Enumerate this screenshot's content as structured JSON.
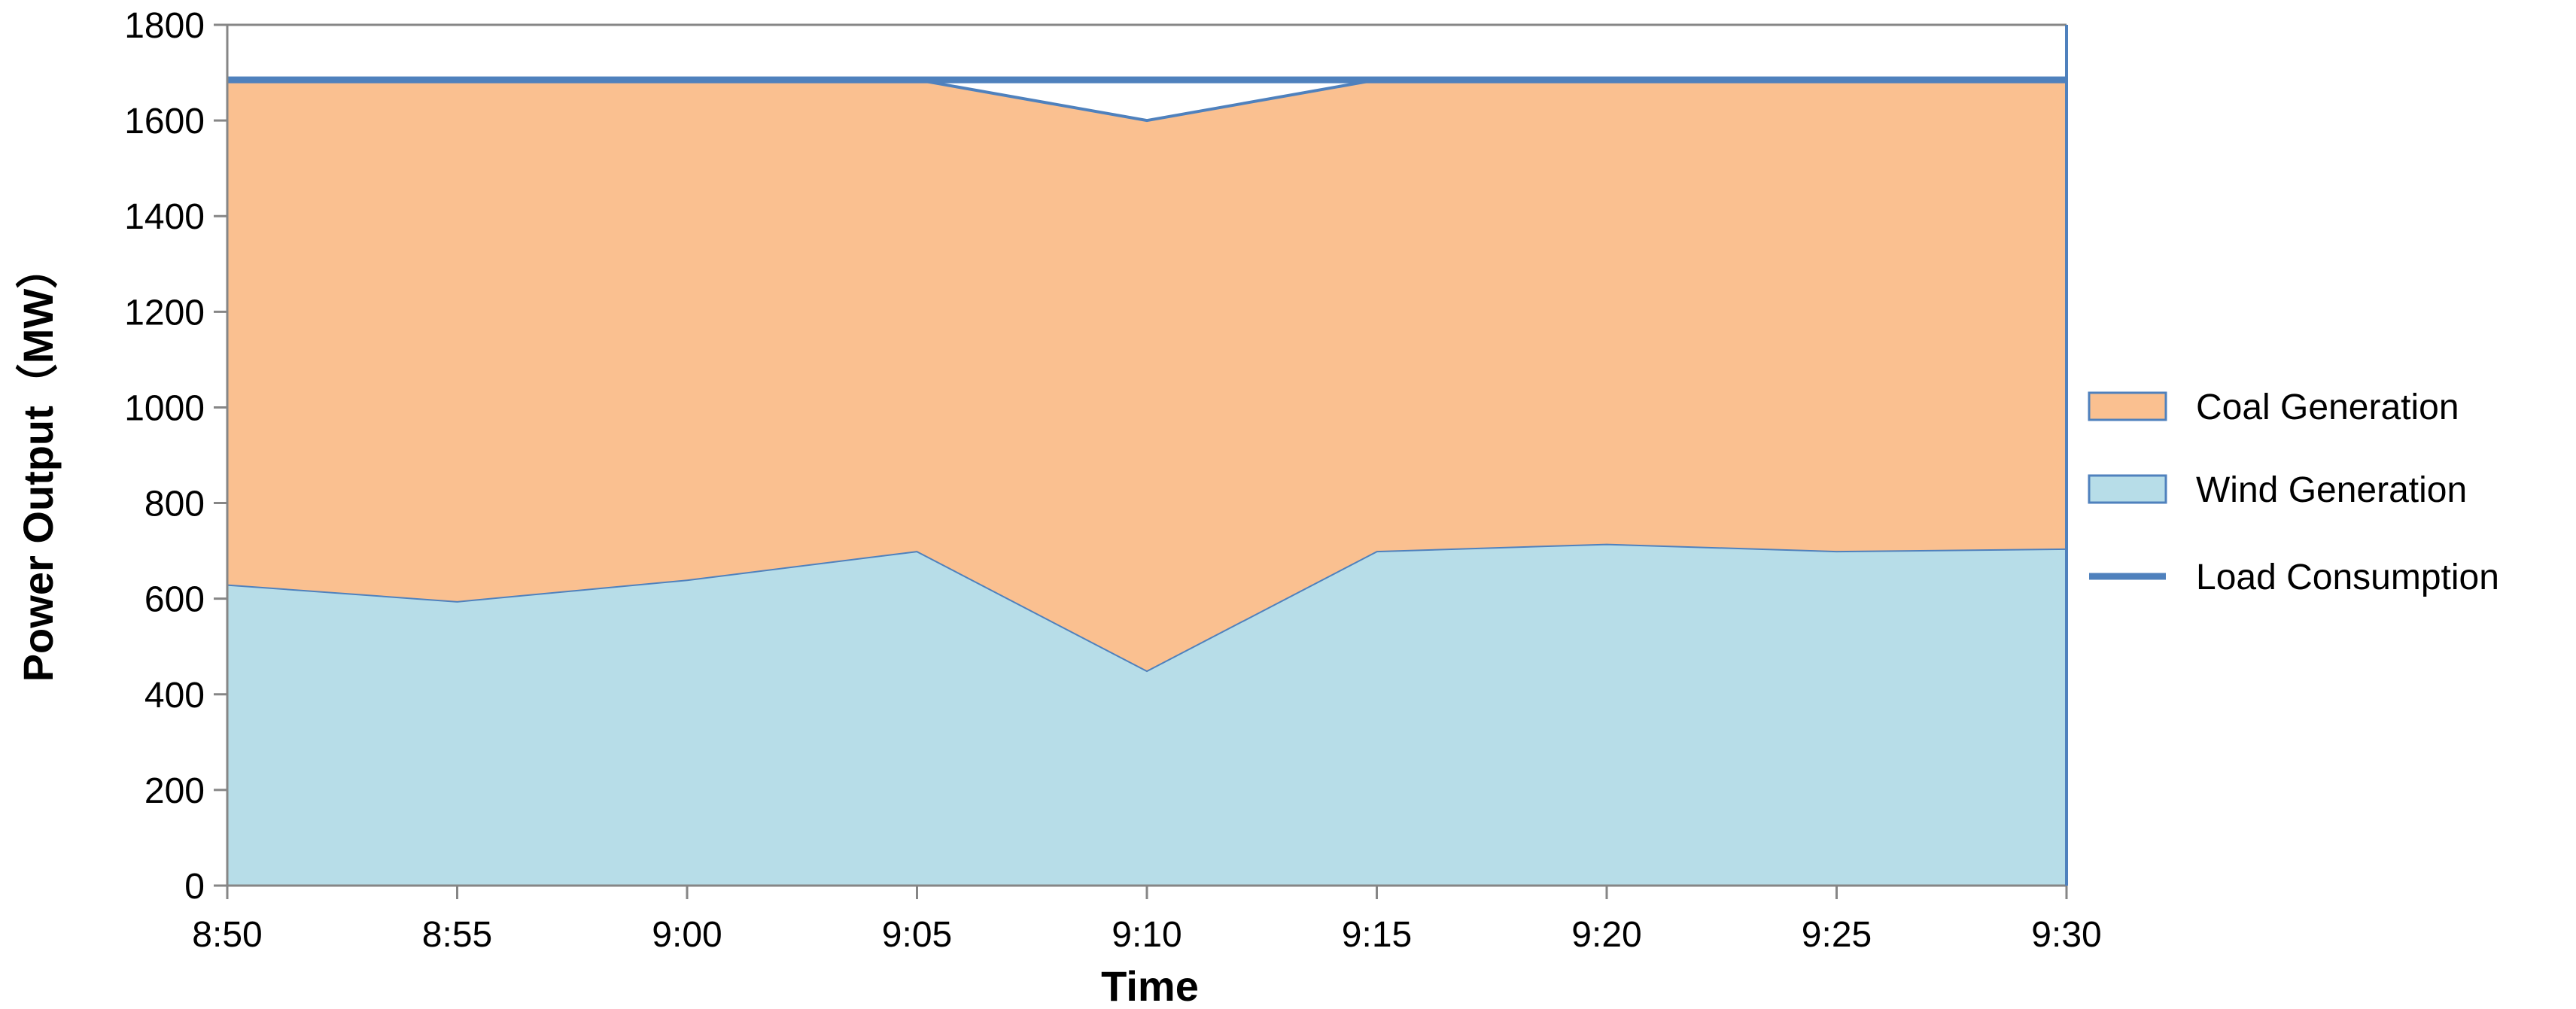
{
  "chart_data": {
    "type": "area",
    "xlabel": "Time",
    "ylabel": "Power Output（MW）",
    "ylim": [
      0,
      1800
    ],
    "y_ticks": [
      0,
      200,
      400,
      600,
      800,
      1000,
      1200,
      1400,
      1600,
      1800
    ],
    "categories": [
      "8:50",
      "8:55",
      "9:00",
      "9:05",
      "9:10",
      "9:15",
      "9:20",
      "9:25",
      "9:30"
    ],
    "stacked": true,
    "grid": "horizontal top border only",
    "legend_position": "right",
    "series": [
      {
        "name": "Wind Generation",
        "kind": "area",
        "values": [
          630,
          595,
          640,
          700,
          450,
          700,
          715,
          700,
          705
        ],
        "color": "#b7dde8",
        "stroke": "#4f81bd"
      },
      {
        "name": "Coal Generation",
        "kind": "area",
        "values": [
          1055,
          1090,
          1045,
          985,
          1150,
          985,
          970,
          985,
          980
        ],
        "color": "#fac090",
        "stroke": "#4f81bd"
      },
      {
        "name": "Load Consumption",
        "kind": "line",
        "values": [
          1685,
          1685,
          1685,
          1685,
          1685,
          1685,
          1685,
          1685,
          1685
        ],
        "color": "#4f81bd"
      }
    ],
    "legend": [
      {
        "label": "Coal Generation",
        "swatch": "area",
        "color": "#fac090",
        "stroke": "#4f81bd"
      },
      {
        "label": "Wind Generation",
        "swatch": "area",
        "color": "#b7dde8",
        "stroke": "#4f81bd"
      },
      {
        "label": "Load Consumption",
        "swatch": "line",
        "color": "#4f81bd"
      }
    ]
  }
}
